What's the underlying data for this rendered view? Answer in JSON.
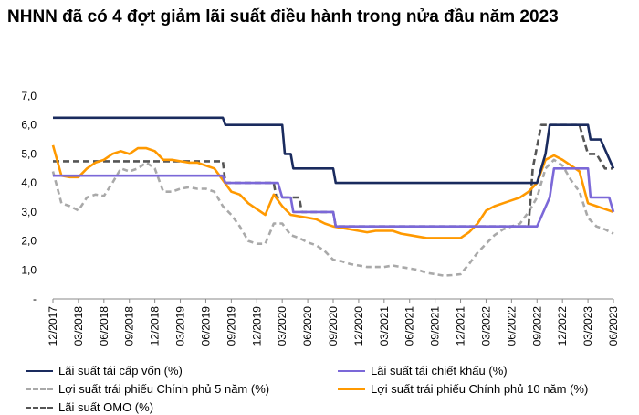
{
  "title": "NHNN đã có 4 đợt giảm lãi suất điều hành trong nửa đầu năm 2023",
  "chart_data": {
    "type": "line",
    "title": "NHNN đã có 4 đợt giảm lãi suất điều hành trong nửa đầu năm 2023",
    "ylim": [
      0,
      7
    ],
    "yticks": [
      "7,0",
      "6,0",
      "5,0",
      "4,0",
      "3,0",
      "2,0",
      "1,0",
      "-"
    ],
    "xrange": [
      0,
      66
    ],
    "xticks": [
      {
        "x": 0,
        "label": "12/2017"
      },
      {
        "x": 3,
        "label": "03/2018"
      },
      {
        "x": 6,
        "label": "06/2018"
      },
      {
        "x": 9,
        "label": "09/2018"
      },
      {
        "x": 12,
        "label": "12/2018"
      },
      {
        "x": 15,
        "label": "03/2019"
      },
      {
        "x": 18,
        "label": "06/2019"
      },
      {
        "x": 21,
        "label": "09/2019"
      },
      {
        "x": 24,
        "label": "12/2019"
      },
      {
        "x": 27,
        "label": "03/2020"
      },
      {
        "x": 30,
        "label": "06/2020"
      },
      {
        "x": 33,
        "label": "09/2020"
      },
      {
        "x": 36,
        "label": "12/2020"
      },
      {
        "x": 39,
        "label": "03/2021"
      },
      {
        "x": 42,
        "label": "06/2021"
      },
      {
        "x": 45,
        "label": "09/2021"
      },
      {
        "x": 48,
        "label": "12/2021"
      },
      {
        "x": 51,
        "label": "03/2022"
      },
      {
        "x": 54,
        "label": "06/2022"
      },
      {
        "x": 57,
        "label": "09/2022"
      },
      {
        "x": 60,
        "label": "12/2022"
      },
      {
        "x": 63,
        "label": "03/2023"
      },
      {
        "x": 66,
        "label": "06/2023"
      }
    ],
    "series": [
      {
        "name": "Lãi suất tái cấp vốn (%)",
        "color": "#1a2b5e",
        "dash": "solid",
        "points": [
          [
            0,
            6.25
          ],
          [
            20,
            6.25
          ],
          [
            20.3,
            6.0
          ],
          [
            27,
            6.0
          ],
          [
            27.3,
            5.0
          ],
          [
            28,
            5.0
          ],
          [
            28.3,
            4.5
          ],
          [
            33,
            4.5
          ],
          [
            33.3,
            4.0
          ],
          [
            57,
            4.0
          ],
          [
            58,
            5.0
          ],
          [
            58.5,
            6.0
          ],
          [
            63,
            6.0
          ],
          [
            63.3,
            5.5
          ],
          [
            64.5,
            5.5
          ],
          [
            66,
            4.5
          ]
        ]
      },
      {
        "name": "Lãi suất tái chiết khấu (%)",
        "color": "#7b68d8",
        "dash": "solid",
        "points": [
          [
            0,
            4.25
          ],
          [
            20,
            4.25
          ],
          [
            20.3,
            4.0
          ],
          [
            26.5,
            4.0
          ],
          [
            27,
            3.5
          ],
          [
            28,
            3.5
          ],
          [
            28.3,
            3.0
          ],
          [
            33,
            3.0
          ],
          [
            33.3,
            2.5
          ],
          [
            57,
            2.5
          ],
          [
            58.5,
            3.5
          ],
          [
            59,
            4.5
          ],
          [
            63,
            4.5
          ],
          [
            63.3,
            3.5
          ],
          [
            65.5,
            3.5
          ],
          [
            66,
            3.0
          ]
        ]
      },
      {
        "name": "Lợi suất trái phiếu Chính phủ 5 năm (%)",
        "color": "#a9a9a9",
        "dash": "6,4",
        "points": [
          [
            0,
            4.4
          ],
          [
            1,
            3.3
          ],
          [
            2,
            3.2
          ],
          [
            3,
            3.05
          ],
          [
            4,
            3.5
          ],
          [
            5,
            3.6
          ],
          [
            6,
            3.55
          ],
          [
            7,
            4.0
          ],
          [
            8,
            4.5
          ],
          [
            9,
            4.4
          ],
          [
            10,
            4.5
          ],
          [
            11,
            4.7
          ],
          [
            12,
            4.5
          ],
          [
            13,
            3.7
          ],
          [
            14,
            3.7
          ],
          [
            15,
            3.8
          ],
          [
            16,
            3.85
          ],
          [
            17,
            3.8
          ],
          [
            18,
            3.8
          ],
          [
            19,
            3.7
          ],
          [
            20,
            3.2
          ],
          [
            21,
            2.9
          ],
          [
            22,
            2.5
          ],
          [
            23,
            2.0
          ],
          [
            24,
            1.9
          ],
          [
            25,
            1.9
          ],
          [
            26,
            2.6
          ],
          [
            27,
            2.6
          ],
          [
            28,
            2.2
          ],
          [
            29,
            2.1
          ],
          [
            30,
            1.95
          ],
          [
            31,
            1.85
          ],
          [
            32,
            1.65
          ],
          [
            33,
            1.35
          ],
          [
            34,
            1.3
          ],
          [
            35,
            1.2
          ],
          [
            36,
            1.15
          ],
          [
            37,
            1.1
          ],
          [
            38,
            1.1
          ],
          [
            39,
            1.1
          ],
          [
            40,
            1.15
          ],
          [
            41,
            1.1
          ],
          [
            42,
            1.05
          ],
          [
            43,
            1.0
          ],
          [
            44,
            0.9
          ],
          [
            45,
            0.85
          ],
          [
            46,
            0.8
          ],
          [
            47,
            0.82
          ],
          [
            48,
            0.85
          ],
          [
            49,
            1.2
          ],
          [
            50,
            1.6
          ],
          [
            51,
            1.9
          ],
          [
            52,
            2.2
          ],
          [
            53,
            2.4
          ],
          [
            54,
            2.5
          ],
          [
            55,
            2.6
          ],
          [
            56,
            3.0
          ],
          [
            57,
            3.5
          ],
          [
            58,
            4.5
          ],
          [
            59,
            4.8
          ],
          [
            60,
            4.6
          ],
          [
            61,
            4.1
          ],
          [
            62,
            3.7
          ],
          [
            63,
            2.8
          ],
          [
            64,
            2.5
          ],
          [
            65,
            2.4
          ],
          [
            66,
            2.25
          ]
        ]
      },
      {
        "name": "Lợi suất trái phiếu Chính phủ 10 năm (%)",
        "color": "#ff9900",
        "dash": "solid",
        "points": [
          [
            0,
            5.3
          ],
          [
            1,
            4.25
          ],
          [
            2,
            4.2
          ],
          [
            3,
            4.2
          ],
          [
            4,
            4.5
          ],
          [
            5,
            4.7
          ],
          [
            6,
            4.8
          ],
          [
            7,
            5.0
          ],
          [
            8,
            5.1
          ],
          [
            9,
            5.0
          ],
          [
            10,
            5.2
          ],
          [
            11,
            5.2
          ],
          [
            12,
            5.1
          ],
          [
            13,
            4.8
          ],
          [
            14,
            4.8
          ],
          [
            15,
            4.75
          ],
          [
            16,
            4.7
          ],
          [
            17,
            4.7
          ],
          [
            18,
            4.6
          ],
          [
            19,
            4.5
          ],
          [
            20,
            4.1
          ],
          [
            21,
            3.7
          ],
          [
            22,
            3.6
          ],
          [
            23,
            3.3
          ],
          [
            24,
            3.1
          ],
          [
            25,
            2.9
          ],
          [
            26,
            3.6
          ],
          [
            27,
            3.2
          ],
          [
            28,
            2.9
          ],
          [
            29,
            2.85
          ],
          [
            30,
            2.8
          ],
          [
            31,
            2.75
          ],
          [
            32,
            2.6
          ],
          [
            33,
            2.5
          ],
          [
            34,
            2.45
          ],
          [
            35,
            2.4
          ],
          [
            36,
            2.35
          ],
          [
            37,
            2.3
          ],
          [
            38,
            2.35
          ],
          [
            39,
            2.35
          ],
          [
            40,
            2.35
          ],
          [
            41,
            2.25
          ],
          [
            42,
            2.2
          ],
          [
            43,
            2.15
          ],
          [
            44,
            2.1
          ],
          [
            45,
            2.1
          ],
          [
            46,
            2.1
          ],
          [
            47,
            2.1
          ],
          [
            48,
            2.1
          ],
          [
            49,
            2.3
          ],
          [
            50,
            2.6
          ],
          [
            51,
            3.05
          ],
          [
            52,
            3.2
          ],
          [
            53,
            3.3
          ],
          [
            54,
            3.4
          ],
          [
            55,
            3.5
          ],
          [
            56,
            3.7
          ],
          [
            57,
            4.0
          ],
          [
            58,
            4.8
          ],
          [
            59,
            4.95
          ],
          [
            60,
            4.8
          ],
          [
            61,
            4.6
          ],
          [
            62,
            4.4
          ],
          [
            63,
            3.3
          ],
          [
            64,
            3.2
          ],
          [
            65,
            3.1
          ],
          [
            66,
            3.0
          ]
        ]
      },
      {
        "name": "Lãi suất OMO (%)",
        "color": "#555555",
        "dash": "7,4",
        "points": [
          [
            0,
            4.75
          ],
          [
            20,
            4.75
          ],
          [
            20.3,
            4.0
          ],
          [
            26,
            4.0
          ],
          [
            26.3,
            3.5
          ],
          [
            29,
            3.5
          ],
          [
            29.3,
            3.0
          ],
          [
            33,
            3.0
          ],
          [
            33.3,
            2.5
          ],
          [
            56,
            2.5
          ],
          [
            56.5,
            4.5
          ],
          [
            57.5,
            6.0
          ],
          [
            62,
            6.0
          ],
          [
            63,
            5.0
          ],
          [
            64,
            5.0
          ],
          [
            65,
            4.5
          ],
          [
            66,
            4.5
          ]
        ]
      }
    ]
  },
  "legend": [
    {
      "label": "Lãi suất tái cấp vốn (%)"
    },
    {
      "label": "Lãi suất tái chiết khấu (%)"
    },
    {
      "label": "Lợi suất trái phiếu Chính phủ 5 năm (%)"
    },
    {
      "label": "Lợi suất trái phiếu Chính phủ 10 năm (%)"
    },
    {
      "label": "Lãi suất OMO (%)"
    }
  ]
}
